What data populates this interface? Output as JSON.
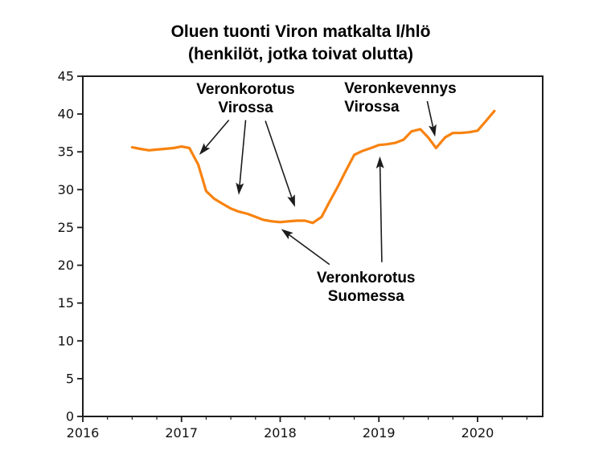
{
  "chart_data": {
    "type": "line",
    "title": "Oluen tuonti Viron matkalta l/hlö",
    "subtitle": "(henkilöt, jotka toivat olutta)",
    "xlabel": "",
    "ylabel": "",
    "xlim": [
      2016,
      2020.66
    ],
    "ylim": [
      0,
      45
    ],
    "xticks": [
      2016,
      2017,
      2018,
      2019,
      2020
    ],
    "x_minor_tick_step": 0.25,
    "yticks": [
      0,
      5,
      10,
      15,
      20,
      25,
      30,
      35,
      40,
      45
    ],
    "grid": false,
    "legend_position": "none",
    "line_color": "#f8820e",
    "axis_color": "#1c1c1c",
    "series": [
      {
        "name": "Oluen tuonti Viron matkalta l/hlö",
        "x": [
          2016.5,
          2016.58,
          2016.67,
          2016.75,
          2016.83,
          2016.92,
          2017.0,
          2017.08,
          2017.17,
          2017.25,
          2017.33,
          2017.42,
          2017.5,
          2017.58,
          2017.67,
          2017.75,
          2017.83,
          2017.92,
          2018.0,
          2018.08,
          2018.17,
          2018.25,
          2018.33,
          2018.42,
          2018.5,
          2018.58,
          2018.67,
          2018.75,
          2018.83,
          2018.92,
          2019.0,
          2019.08,
          2019.17,
          2019.25,
          2019.33,
          2019.42,
          2019.5,
          2019.58,
          2019.67,
          2019.75,
          2019.83,
          2019.92,
          2020.0,
          2020.08,
          2020.17
        ],
        "y": [
          35.6,
          35.4,
          35.2,
          35.3,
          35.4,
          35.5,
          35.7,
          35.5,
          33.3,
          29.8,
          28.8,
          28.1,
          27.5,
          27.1,
          26.8,
          26.4,
          26.0,
          25.8,
          25.7,
          25.8,
          25.9,
          25.9,
          25.6,
          26.4,
          28.4,
          30.3,
          32.6,
          34.6,
          35.1,
          35.5,
          35.9,
          36.0,
          36.2,
          36.6,
          37.7,
          38.0,
          36.9,
          35.5,
          36.9,
          37.5,
          37.5,
          37.6,
          37.8,
          39.0,
          40.4
        ]
      }
    ],
    "annotations": [
      {
        "id": "veronkorotus-virossa",
        "lines": [
          "Veronkorotus",
          "Virossa"
        ],
        "align": "center",
        "x": 2017.65,
        "y_first_baseline": 42.66,
        "arrows": [
          {
            "from": [
              2017.48,
              39.2
            ],
            "to": [
              2017.18,
              34.6
            ]
          },
          {
            "from": [
              2017.65,
              39.2
            ],
            "to": [
              2017.58,
              29.3
            ]
          },
          {
            "from": [
              2017.85,
              39.1
            ],
            "to": [
              2018.15,
              27.7
            ]
          }
        ]
      },
      {
        "id": "veronkevennys-virossa",
        "lines": [
          "Veronkevennys",
          "Virossa"
        ],
        "align": "left",
        "x": 2018.65,
        "y_first_baseline": 42.77,
        "arrows": [
          {
            "from": [
              2019.49,
              41.7
            ],
            "to": [
              2019.57,
              37.0
            ]
          }
        ]
      },
      {
        "id": "veronkorotus-suomessa",
        "lines": [
          "Veronkorotus",
          "Suomessa"
        ],
        "align": "center",
        "x": 2018.87,
        "y_first_baseline": 17.72,
        "arrows": [
          {
            "from": [
              2018.5,
              20.1
            ],
            "to": [
              2018.01,
              24.8
            ]
          },
          {
            "from": [
              2019.03,
              20.4
            ],
            "to": [
              2019.01,
              34.4
            ]
          }
        ]
      }
    ]
  }
}
